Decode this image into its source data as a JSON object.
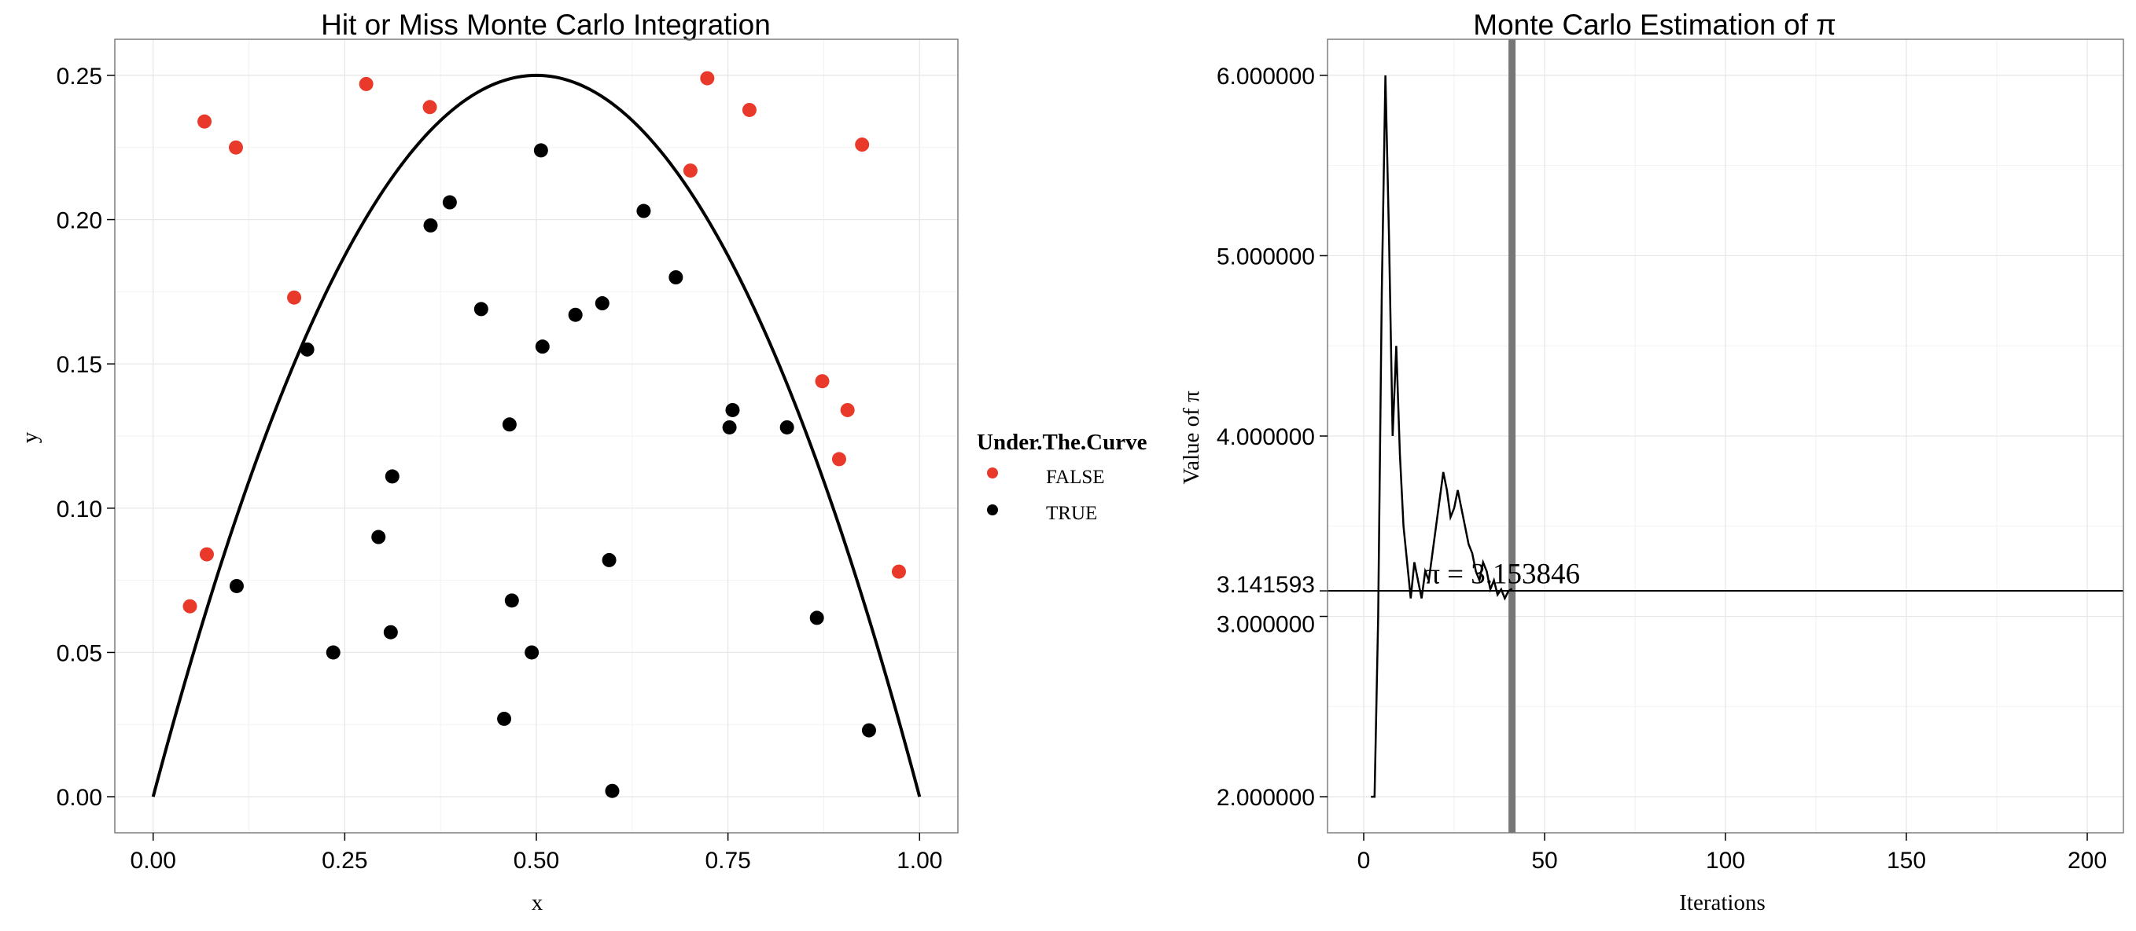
{
  "chart_data": [
    {
      "type": "scatter",
      "title": "Hit or Miss Monte Carlo Integration",
      "xlabel": "x",
      "ylabel": "y",
      "xlim": [
        -0.05,
        1.05
      ],
      "ylim": [
        -0.0125,
        0.2625
      ],
      "x_ticks": [
        0,
        0.25,
        0.5,
        0.75,
        1
      ],
      "x_tick_labels": [
        "0.00",
        "0.25",
        "0.50",
        "0.75",
        "1.00"
      ],
      "y_ticks": [
        0,
        0.05,
        0.1,
        0.15,
        0.2,
        0.25
      ],
      "y_tick_labels": [
        "0.00",
        "0.05",
        "0.10",
        "0.15",
        "0.20",
        "0.25"
      ],
      "grid": true,
      "legend": {
        "title": "Under.The.Curve",
        "placement": "right",
        "entries": [
          {
            "label": "FALSE",
            "color": "#e8392a"
          },
          {
            "label": "TRUE",
            "color": "#000000"
          }
        ]
      },
      "curve": {
        "formula": "y = x(1 - x)",
        "color": "#000000"
      },
      "series": [
        {
          "name": "FALSE",
          "color": "#e8392a",
          "points": [
            [
              0.048,
              0.066
            ],
            [
              0.067,
              0.234
            ],
            [
              0.07,
              0.084
            ],
            [
              0.108,
              0.225
            ],
            [
              0.184,
              0.173
            ],
            [
              0.278,
              0.247
            ],
            [
              0.361,
              0.239
            ],
            [
              0.701,
              0.217
            ],
            [
              0.723,
              0.249
            ],
            [
              0.778,
              0.238
            ],
            [
              0.873,
              0.144
            ],
            [
              0.895,
              0.117
            ],
            [
              0.906,
              0.134
            ],
            [
              0.925,
              0.226
            ],
            [
              0.973,
              0.078
            ]
          ]
        },
        {
          "name": "TRUE",
          "color": "#000000",
          "points": [
            [
              0.109,
              0.073
            ],
            [
              0.201,
              0.155
            ],
            [
              0.235,
              0.05
            ],
            [
              0.294,
              0.09
            ],
            [
              0.31,
              0.057
            ],
            [
              0.312,
              0.111
            ],
            [
              0.362,
              0.198
            ],
            [
              0.387,
              0.206
            ],
            [
              0.428,
              0.169
            ],
            [
              0.458,
              0.027
            ],
            [
              0.465,
              0.129
            ],
            [
              0.468,
              0.068
            ],
            [
              0.494,
              0.05
            ],
            [
              0.506,
              0.224
            ],
            [
              0.508,
              0.156
            ],
            [
              0.551,
              0.167
            ],
            [
              0.586,
              0.171
            ],
            [
              0.595,
              0.082
            ],
            [
              0.599,
              0.002
            ],
            [
              0.64,
              0.203
            ],
            [
              0.682,
              0.18
            ],
            [
              0.752,
              0.128
            ],
            [
              0.756,
              0.134
            ],
            [
              0.827,
              0.128
            ],
            [
              0.866,
              0.062
            ],
            [
              0.934,
              0.023
            ]
          ]
        }
      ]
    },
    {
      "type": "line",
      "title": "Monte Carlo Estimation of π",
      "xlabel": "Iterations",
      "ylabel": "Value of π",
      "xlim": [
        -10,
        210
      ],
      "ylim": [
        1.8,
        6.2
      ],
      "x_ticks": [
        0,
        50,
        100,
        150,
        200
      ],
      "x_tick_labels": [
        "0",
        "50",
        "100",
        "150",
        "200"
      ],
      "y_ticks": [
        2,
        3,
        3.141593,
        4,
        5,
        6
      ],
      "y_tick_labels": [
        "2.000000",
        "3.000000",
        "3.141593",
        "4.000000",
        "5.000000",
        "6.000000"
      ],
      "grid": true,
      "reference_line": {
        "y": 3.141593,
        "color": "#000000"
      },
      "current_iteration_line": {
        "x": 41,
        "color": "#777777"
      },
      "annotation": {
        "text": "π = 3.153846",
        "x": 17,
        "y": 3.2
      },
      "series": [
        {
          "color": "#000000",
          "x": [
            2,
            3,
            4,
            5,
            6,
            7,
            8,
            9,
            10,
            11,
            12,
            13,
            14,
            15,
            16,
            17,
            18,
            19,
            20,
            21,
            22,
            23,
            24,
            25,
            26,
            27,
            28,
            29,
            30,
            31,
            32,
            33,
            34,
            35,
            36,
            37,
            38,
            39,
            40,
            41
          ],
          "y": [
            2.0,
            2.0,
            3.0,
            4.8,
            6.0,
            5.1,
            4.0,
            4.5,
            3.9,
            3.5,
            3.3,
            3.1,
            3.3,
            3.2,
            3.1,
            3.25,
            3.2,
            3.35,
            3.5,
            3.65,
            3.8,
            3.7,
            3.55,
            3.6,
            3.7,
            3.6,
            3.5,
            3.4,
            3.35,
            3.25,
            3.2,
            3.3,
            3.25,
            3.15,
            3.2,
            3.12,
            3.15,
            3.1,
            3.14,
            3.153846
          ]
        }
      ]
    }
  ]
}
